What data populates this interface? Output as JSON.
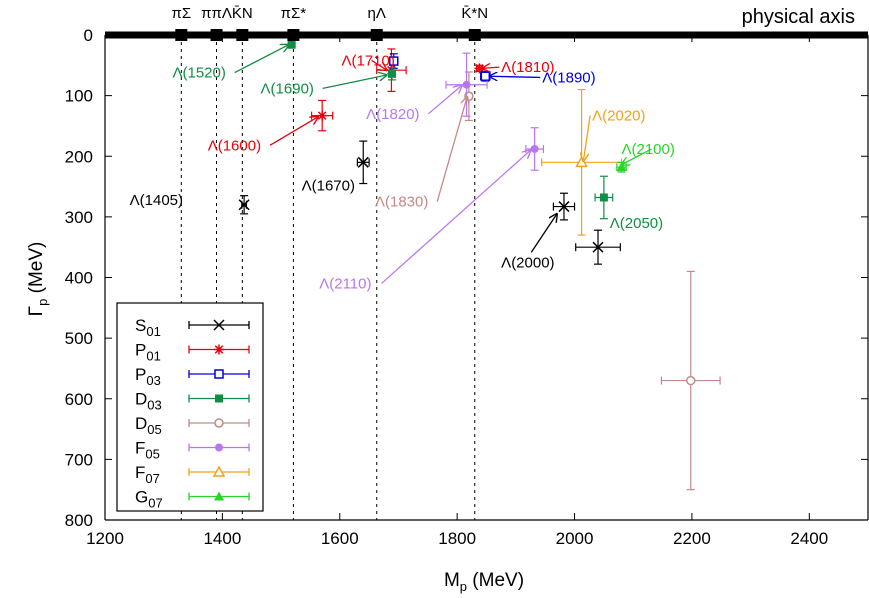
{
  "chart_data": {
    "type": "scatter",
    "xlabel": "M_p (MeV)",
    "ylabel": "Γ_p (MeV)",
    "xlim": [
      1200,
      2500
    ],
    "ylim": [
      0,
      800
    ],
    "y_inverted": true,
    "x_ticks": [
      1200,
      1400,
      1600,
      1800,
      2000,
      2200,
      2400
    ],
    "y_ticks": [
      0,
      100,
      200,
      300,
      400,
      500,
      600,
      700,
      800
    ],
    "physical_axis_label": "physical axis",
    "thresholds": [
      {
        "label": "πΣ",
        "m": 1330
      },
      {
        "label": "ππΛ",
        "m": 1390
      },
      {
        "label": "K̄N",
        "m": 1434
      },
      {
        "label": "πΣ*",
        "m": 1521
      },
      {
        "label": "ηΛ",
        "m": 1663
      },
      {
        "label": "K̄*N",
        "m": 1830
      }
    ],
    "series": [
      {
        "name": "S01",
        "sub": "01",
        "letter": "S",
        "color": "#000000",
        "marker": "x",
        "points": [
          {
            "label": "Λ(1405)",
            "m": 1437,
            "g": 280,
            "ex": 4,
            "ey": 15
          },
          {
            "label": "Λ(1670)",
            "m": 1640,
            "g": 210,
            "ex": 10,
            "ey": 35
          },
          {
            "label": "Λ(2000)",
            "m": 1982,
            "g": 283,
            "ex": 18,
            "ey": 22
          },
          {
            "label": "",
            "m": 2040,
            "g": 350,
            "ex": 38,
            "ey": 28
          }
        ]
      },
      {
        "name": "P01",
        "sub": "01",
        "letter": "P",
        "color": "#e8000b",
        "marker": "star",
        "points": [
          {
            "label": "Λ(1600)",
            "m": 1570,
            "g": 133,
            "ex": 18,
            "ey": 25
          },
          {
            "label": "Λ(1710)",
            "m": 1688,
            "g": 58,
            "ex": 25,
            "ey": 35
          },
          {
            "label": "Λ(1810)",
            "m": 1838,
            "g": 55,
            "ex": 5,
            "ey": 5
          }
        ]
      },
      {
        "name": "P03",
        "sub": "03",
        "letter": "P",
        "color": "#0000dd",
        "marker": "square-open",
        "points": [
          {
            "label": "",
            "m": 1692,
            "g": 43,
            "ex": 4,
            "ey": 12
          },
          {
            "label": "Λ(1890)",
            "m": 1848,
            "g": 68,
            "ex": 8,
            "ey": 8
          }
        ]
      },
      {
        "name": "D03",
        "sub": "03",
        "letter": "D",
        "color": "#118d44",
        "marker": "square",
        "points": [
          {
            "label": "Λ(1520)",
            "m": 1518,
            "g": 16,
            "ex": 2,
            "ey": 2
          },
          {
            "label": "Λ(1690)",
            "m": 1689,
            "g": 64,
            "ex": 5,
            "ey": 10
          },
          {
            "label": "Λ(2050)",
            "m": 2050,
            "g": 268,
            "ex": 15,
            "ey": 35
          }
        ]
      },
      {
        "name": "D05",
        "sub": "05",
        "letter": "D",
        "color": "#c28a8a",
        "marker": "circle-open",
        "points": [
          {
            "label": "Λ(1830)",
            "m": 1820,
            "g": 101,
            "ex": 5,
            "ey": 40
          },
          {
            "label": "",
            "m": 2198,
            "g": 570,
            "ex": 50,
            "ey": 180
          }
        ]
      },
      {
        "name": "F05",
        "sub": "05",
        "letter": "F",
        "color": "#b877f0",
        "marker": "circle",
        "points": [
          {
            "label": "Λ(1820)",
            "m": 1816,
            "g": 82,
            "ex": 35,
            "ey": 52
          },
          {
            "label": "Λ(2110)",
            "m": 1932,
            "g": 188,
            "ex": 15,
            "ey": 35
          }
        ]
      },
      {
        "name": "F07",
        "sub": "07",
        "letter": "F",
        "color": "#f0a21a",
        "marker": "triangle-open",
        "points": [
          {
            "label": "Λ(2020)",
            "m": 2012,
            "g": 210,
            "ex": 68,
            "ey": 120
          }
        ]
      },
      {
        "name": "G07",
        "sub": "07",
        "letter": "G",
        "color": "#2ad42a",
        "marker": "triangle",
        "points": [
          {
            "label": "Λ(2100)",
            "m": 2080,
            "g": 218,
            "ex": 8,
            "ey": 8
          }
        ]
      }
    ],
    "annotations": [
      {
        "text": "Λ(1520)",
        "color": "#118d44",
        "tx": 1315,
        "tg": 62,
        "ax": 1513,
        "ag": 16
      },
      {
        "text": "Λ(1690)",
        "color": "#118d44",
        "tx": 1465,
        "tg": 88,
        "ax": 1680,
        "ag": 66
      },
      {
        "text": "Λ(1710)",
        "color": "#e8000b",
        "tx": 1603,
        "tg": 42,
        "ax": 1680,
        "ag": 58
      },
      {
        "text": "Λ(1600)",
        "color": "#e8000b",
        "tx": 1375,
        "tg": 182,
        "ax": 1563,
        "ag": 135
      },
      {
        "text": "Λ(1670)",
        "color": "#000000",
        "tx": 1535,
        "tg": 248,
        "ax": 0,
        "ag": 0
      },
      {
        "text": "Λ(1405)",
        "color": "#000000",
        "tx": 1242,
        "tg": 272,
        "ax": 0,
        "ag": 0
      },
      {
        "text": "Λ(1810)",
        "color": "#e8000b",
        "tx": 1875,
        "tg": 53,
        "ax": 1843,
        "ag": 55
      },
      {
        "text": "Λ(1890)",
        "color": "#0000dd",
        "tx": 1945,
        "tg": 70,
        "ax": 1855,
        "ag": 68
      },
      {
        "text": "Λ(1820)",
        "color": "#b877f0",
        "tx": 1645,
        "tg": 130,
        "ax": 1808,
        "ag": 83
      },
      {
        "text": "Λ(1830)",
        "color": "#c28a8a",
        "tx": 1660,
        "tg": 275,
        "ax": 1817,
        "ag": 102
      },
      {
        "text": "Λ(2110)",
        "color": "#b877f0",
        "tx": 1565,
        "tg": 410,
        "ax": 1925,
        "ag": 190
      },
      {
        "text": "Λ(2020)",
        "color": "#f0a21a",
        "tx": 2030,
        "tg": 133,
        "ax": 2015,
        "ag": 208
      },
      {
        "text": "Λ(2100)",
        "color": "#2ad42a",
        "tx": 2080,
        "tg": 188,
        "ax": 2080,
        "ag": 214
      },
      {
        "text": "Λ(2050)",
        "color": "#118d44",
        "tx": 2060,
        "tg": 310,
        "ax": 0,
        "ag": 0
      },
      {
        "text": "Λ(2000)",
        "color": "#000000",
        "tx": 1875,
        "tg": 375,
        "ax": 1970,
        "ag": 295
      }
    ]
  }
}
